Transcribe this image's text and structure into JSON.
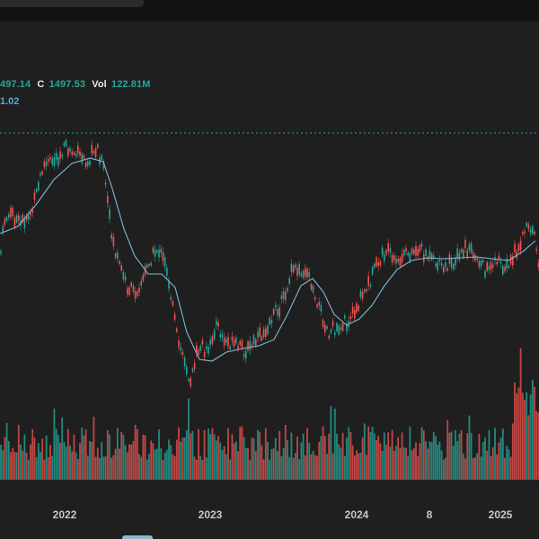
{
  "legend": {
    "o_value": "497.14",
    "c_label": "C",
    "c_value": "1497.53",
    "vol_label": "Vol",
    "vol_value": "122.81M",
    "ma_value": "1.02"
  },
  "colors": {
    "up": "#26a69a",
    "down": "#ef5350",
    "ma": "#7fb9d9",
    "dotted": "#26a69a",
    "background": "#1f1f1f"
  },
  "chart_data": {
    "type": "candlestick",
    "x_ticks": [
      "2022",
      "2023",
      "2024",
      "8",
      "2025"
    ],
    "price_path": [
      [
        0,
        290
      ],
      [
        5,
        245
      ],
      [
        14,
        238
      ],
      [
        22,
        250
      ],
      [
        36,
        235
      ],
      [
        48,
        185
      ],
      [
        60,
        178
      ],
      [
        72,
        165
      ],
      [
        85,
        172
      ],
      [
        98,
        178
      ],
      [
        108,
        162
      ],
      [
        116,
        190
      ],
      [
        122,
        245
      ],
      [
        128,
        280
      ],
      [
        135,
        300
      ],
      [
        142,
        320
      ],
      [
        150,
        325
      ],
      [
        160,
        310
      ],
      [
        166,
        290
      ],
      [
        176,
        276
      ],
      [
        186,
        300
      ],
      [
        192,
        340
      ],
      [
        198,
        380
      ],
      [
        206,
        400
      ],
      [
        212,
        430
      ],
      [
        218,
        395
      ],
      [
        225,
        385
      ],
      [
        232,
        395
      ],
      [
        240,
        360
      ],
      [
        250,
        380
      ],
      [
        262,
        385
      ],
      [
        275,
        390
      ],
      [
        290,
        375
      ],
      [
        302,
        355
      ],
      [
        315,
        335
      ],
      [
        326,
        300
      ],
      [
        334,
        300
      ],
      [
        342,
        300
      ],
      [
        350,
        325
      ],
      [
        360,
        355
      ],
      [
        366,
        370
      ],
      [
        374,
        365
      ],
      [
        386,
        358
      ],
      [
        398,
        340
      ],
      [
        408,
        322
      ],
      [
        418,
        300
      ],
      [
        430,
        278
      ],
      [
        440,
        295
      ],
      [
        454,
        282
      ],
      [
        468,
        276
      ],
      [
        480,
        290
      ],
      [
        494,
        300
      ],
      [
        506,
        290
      ],
      [
        518,
        278
      ],
      [
        530,
        285
      ],
      [
        540,
        300
      ],
      [
        552,
        288
      ],
      [
        565,
        298
      ],
      [
        578,
        272
      ],
      [
        588,
        250
      ],
      [
        596,
        265
      ],
      [
        600,
        300
      ]
    ],
    "ma_path": [
      [
        0,
        260
      ],
      [
        20,
        252
      ],
      [
        40,
        228
      ],
      [
        60,
        200
      ],
      [
        80,
        182
      ],
      [
        100,
        176
      ],
      [
        115,
        180
      ],
      [
        125,
        210
      ],
      [
        138,
        255
      ],
      [
        150,
        285
      ],
      [
        165,
        305
      ],
      [
        180,
        305
      ],
      [
        195,
        320
      ],
      [
        208,
        370
      ],
      [
        222,
        400
      ],
      [
        236,
        402
      ],
      [
        252,
        392
      ],
      [
        270,
        388
      ],
      [
        288,
        385
      ],
      [
        305,
        378
      ],
      [
        320,
        350
      ],
      [
        335,
        318
      ],
      [
        348,
        310
      ],
      [
        360,
        325
      ],
      [
        372,
        350
      ],
      [
        386,
        362
      ],
      [
        400,
        355
      ],
      [
        414,
        340
      ],
      [
        428,
        318
      ],
      [
        442,
        300
      ],
      [
        458,
        290
      ],
      [
        476,
        287
      ],
      [
        494,
        288
      ],
      [
        512,
        287
      ],
      [
        530,
        286
      ],
      [
        548,
        288
      ],
      [
        566,
        290
      ],
      [
        582,
        280
      ],
      [
        596,
        268
      ]
    ],
    "dotted_level_y": 148,
    "volume_base_y": 534
  }
}
